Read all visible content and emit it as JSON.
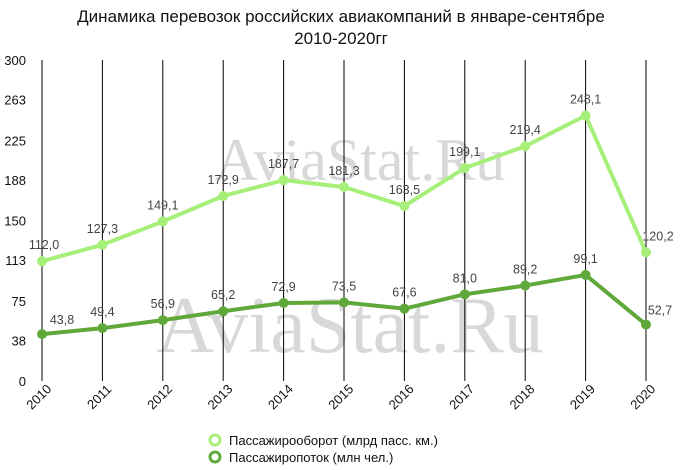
{
  "chart_data": {
    "type": "line",
    "title_lines": [
      "Динамика перевозок российских авиакомпаний в январе-сентябре",
      "2010-2020гг"
    ],
    "watermark": "AviaStat.Ru",
    "categories": [
      "2010",
      "2011",
      "2012",
      "2013",
      "2014",
      "2015",
      "2016",
      "2017",
      "2018",
      "2019",
      "2020"
    ],
    "yticks": [
      0,
      38,
      75,
      113,
      150,
      188,
      225,
      263,
      300
    ],
    "ylim": [
      0,
      300
    ],
    "grid": "vertical",
    "legend_position": "bottom",
    "series": [
      {
        "name": "Пассажирооборот (млрд пасс. км.)",
        "color": "#a6f07a",
        "values": [
          112.0,
          127.3,
          149.1,
          172.9,
          187.7,
          181.3,
          163.5,
          199.1,
          219.4,
          248.1,
          120.2
        ],
        "labels": [
          "112,0",
          "127,3",
          "149,1",
          "172,9",
          "187,7",
          "181,3",
          "163,5",
          "199,1",
          "219,4",
          "248,1",
          "120,2"
        ]
      },
      {
        "name": "Пассажиропоток (млн чел.)",
        "color": "#5fa83a",
        "values": [
          43.8,
          49.4,
          56.9,
          65.2,
          72.9,
          73.5,
          67.6,
          81.0,
          89.2,
          99.1,
          52.7
        ],
        "labels": [
          "43,8",
          "49,4",
          "56,9",
          "65,2",
          "72,9",
          "73,5",
          "67,6",
          "81,0",
          "89,2",
          "99,1",
          "52,7"
        ]
      }
    ]
  }
}
